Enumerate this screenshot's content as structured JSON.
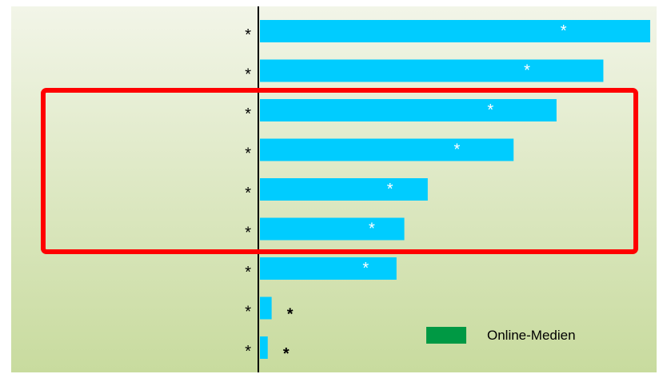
{
  "chart_data": {
    "type": "bar",
    "orientation": "horizontal",
    "categories": [
      "*",
      "*",
      "*",
      "*",
      "*",
      "*",
      "*",
      "*",
      "*"
    ],
    "values": [
      100,
      88,
      76,
      65,
      43,
      37,
      35,
      3,
      2
    ],
    "value_labels": [
      "*",
      "*",
      "*",
      "*",
      "*",
      "*",
      "*",
      "*",
      "*"
    ],
    "series": [
      {
        "name": "Online-Medien",
        "values": [
          100,
          88,
          76,
          65,
          43,
          37,
          35,
          3,
          2
        ]
      }
    ],
    "xlim": [
      0,
      100
    ],
    "grid": false,
    "legend": {
      "entries": [
        "Online-Medien"
      ],
      "position": "bottom-right"
    },
    "highlight": {
      "from_index": 2,
      "to_index": 5,
      "style": "red rectangle"
    },
    "title": "",
    "xlabel": "",
    "ylabel": ""
  },
  "legend": {
    "label": "Online-Medien"
  },
  "colors": {
    "bar": "#00CCFF",
    "legend_swatch": "#009944",
    "highlight_box": "#FF0000",
    "background_top": "#F2F5E8",
    "background_bottom": "#C8DB9E",
    "axis": "#000000",
    "inner_label": "#FFFFFF",
    "outer_label": "#000000"
  }
}
